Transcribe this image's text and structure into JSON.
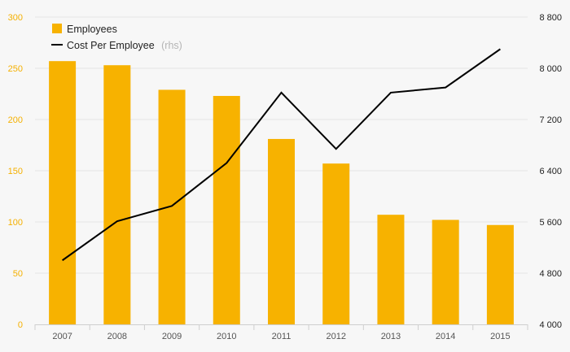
{
  "chart_data": {
    "type": "bar+line",
    "categories": [
      "2007",
      "2008",
      "2009",
      "2010",
      "2011",
      "2012",
      "2013",
      "2014",
      "2015"
    ],
    "series": [
      {
        "name": "Employees",
        "kind": "bar",
        "axis": "left",
        "color": "#f7b200",
        "values": [
          257,
          253,
          229,
          223,
          181,
          157,
          107,
          102,
          97
        ]
      },
      {
        "name": "Cost Per Employee",
        "name_suffix": "(rhs)",
        "kind": "line",
        "axis": "right",
        "color": "#000000",
        "values": [
          5000,
          5610,
          5850,
          6520,
          7620,
          6740,
          7620,
          7700,
          8300
        ]
      }
    ],
    "y_left": {
      "min": 0,
      "max": 300,
      "ticks": [
        "0",
        "50",
        "100",
        "150",
        "200",
        "250",
        "300"
      ]
    },
    "y_right": {
      "min": 4000,
      "max": 8800,
      "ticks": [
        "4 000",
        "4 800",
        "5 600",
        "6 400",
        "7 200",
        "8 000",
        "8 800"
      ]
    },
    "grid": true,
    "legend_position": "top-left"
  }
}
